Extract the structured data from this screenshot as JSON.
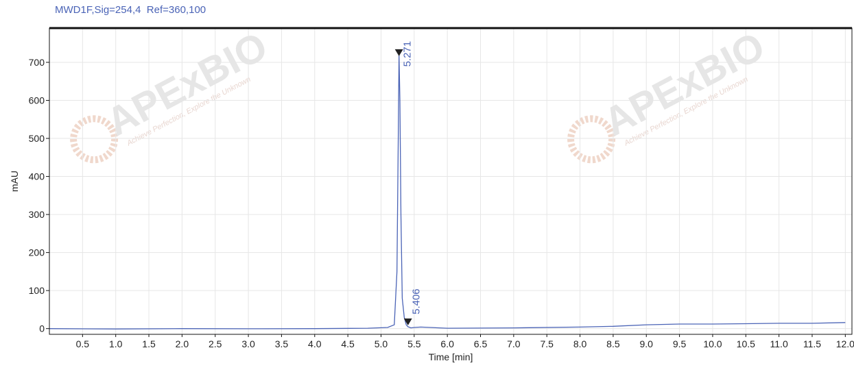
{
  "chart_data": {
    "type": "line",
    "title": "MWD1F,Sig=254,4  Ref=360,100",
    "xlabel": "Time [min]",
    "ylabel": "mAU",
    "xlim": [
      0.0,
      12.1
    ],
    "ylim": [
      -15,
      790
    ],
    "x_ticks": [
      0.5,
      1.0,
      1.5,
      2.0,
      2.5,
      3.0,
      3.5,
      4.0,
      4.5,
      5.0,
      5.5,
      6.0,
      6.5,
      7.0,
      7.5,
      8.0,
      8.5,
      9.0,
      9.5,
      10.0,
      10.5,
      11.0,
      11.5,
      12.0
    ],
    "x_tick_labels": [
      "0.5",
      "1.0",
      "1.5",
      "2.0",
      "2.5",
      "3.0",
      "3.5",
      "4.0",
      "4.5",
      "5.0",
      "5.5",
      "6.0",
      "6.5",
      "7.0",
      "7.5",
      "8.0",
      "8.5",
      "9.0",
      "9.5",
      "10.0",
      "10.5",
      "11.0",
      "11.5",
      "12.0"
    ],
    "y_ticks": [
      0,
      100,
      200,
      300,
      400,
      500,
      600,
      700
    ],
    "y_tick_labels": [
      "0",
      "100",
      "200",
      "300",
      "400",
      "500",
      "600",
      "700"
    ],
    "grid": true,
    "series": [
      {
        "color": "#4a63b6",
        "x": [
          0.0,
          1.0,
          2.0,
          3.0,
          4.0,
          4.8,
          5.1,
          5.2,
          5.24,
          5.26,
          5.271,
          5.285,
          5.3,
          5.32,
          5.35,
          5.38,
          5.406,
          5.45,
          5.5,
          5.6,
          6.0,
          7.0,
          8.0,
          8.5,
          9.0,
          9.5,
          10.0,
          10.5,
          11.0,
          11.5,
          12.0
        ],
        "y": [
          0,
          -1,
          0,
          -0.5,
          0,
          1,
          3,
          10,
          150,
          500,
          720,
          600,
          300,
          80,
          30,
          10,
          5,
          2,
          3,
          4,
          1,
          2,
          4,
          6,
          10,
          12,
          12,
          13,
          14,
          14,
          16
        ]
      }
    ],
    "annotations": [
      {
        "label": "5.271",
        "x": 5.271,
        "y": 720
      },
      {
        "label": "5.406",
        "x": 5.406,
        "y": 5
      }
    ]
  },
  "watermark": {
    "text": "APExBIO",
    "subtext": "Achieve Perfection, Explore the Unknown"
  }
}
